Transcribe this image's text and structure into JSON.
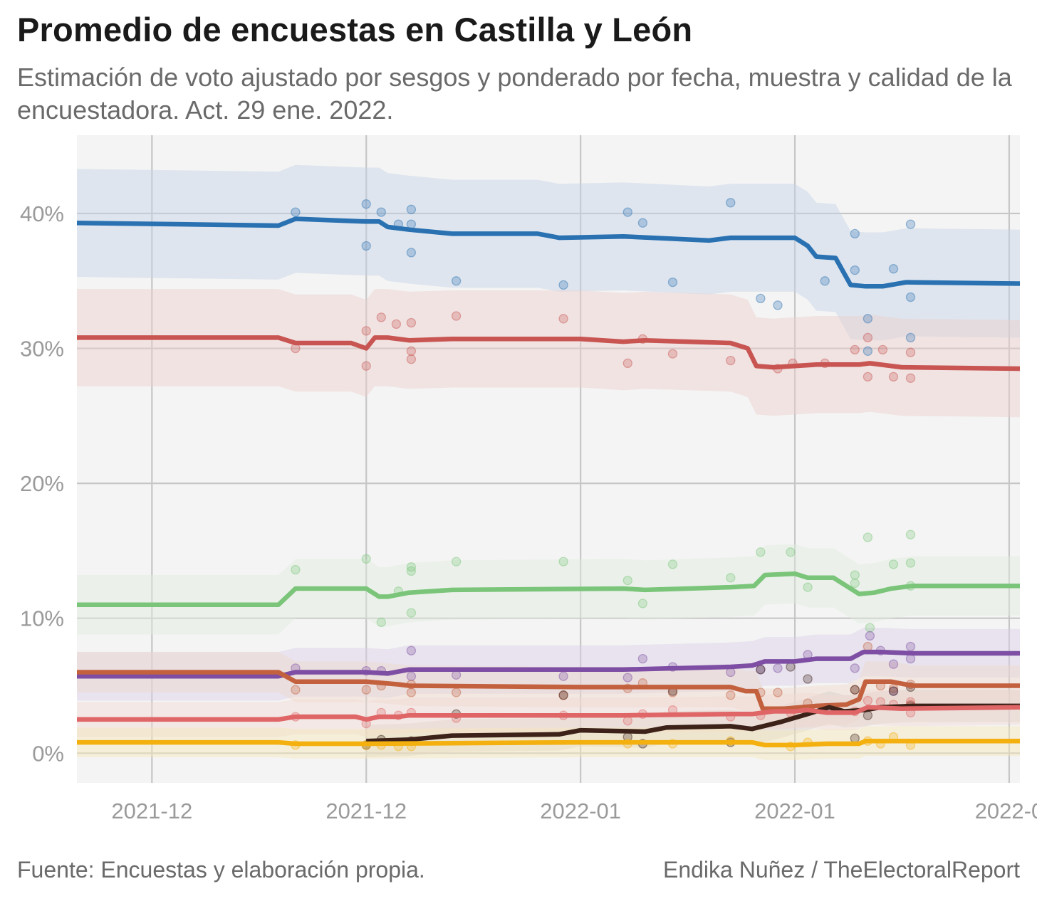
{
  "header": {
    "title": "Promedio de encuestas en Castilla y León",
    "subtitle": "Estimación de voto ajustado por sesgos y ponderado por fecha, muestra y calidad de la encuestadora. Act. 29 ene. 2022."
  },
  "footer": {
    "source": "Fuente: Encuestas y elaboración propia.",
    "credit": "Endika Nuñez / TheElectoralReport"
  },
  "chart_data": {
    "type": "line",
    "title": "Promedio de encuestas en Castilla y León",
    "subtitle": "Estimación de voto ajustado por sesgos y ponderado por fecha, muestra y calidad de la encuestadora. Act. 29 ene. 2022.",
    "xlabel": "",
    "ylabel": "",
    "xlim": [
      -3.5,
      40.5
    ],
    "ylim": [
      -2.2,
      45.8
    ],
    "x_unit": "days since 2021-12-01",
    "x_ticks": [
      {
        "x": 0,
        "label": "2021-12"
      },
      {
        "x": 10,
        "label": "2021-12"
      },
      {
        "x": 20,
        "label": "2022-01"
      },
      {
        "x": 30,
        "label": "2022-01"
      },
      {
        "x": 40,
        "label": "2022-0"
      }
    ],
    "y_ticks": [
      {
        "y": 0,
        "label": "0%"
      },
      {
        "y": 10,
        "label": "10%"
      },
      {
        "y": 20,
        "label": "20%"
      },
      {
        "y": 30,
        "label": "30%"
      },
      {
        "y": 40,
        "label": "40%"
      }
    ],
    "grid": true,
    "background": "#f4f4f4",
    "legend": "none",
    "series": [
      {
        "color": "#2a71b2",
        "band_color": "#c4d2e6",
        "x": [
          -3.5,
          5.9,
          6.7,
          10,
          10.6,
          11,
          12,
          14,
          18,
          19,
          22,
          26,
          27,
          29,
          30,
          30.6,
          31,
          31.9,
          32.6,
          33.3,
          34.1,
          35.2,
          40.5
        ],
        "y": [
          39.3,
          39.1,
          39.6,
          39.4,
          39.4,
          39.0,
          38.8,
          38.5,
          38.5,
          38.2,
          38.3,
          38.0,
          38.2,
          38.2,
          38.2,
          37.6,
          36.8,
          36.7,
          34.7,
          34.6,
          34.6,
          34.9,
          34.8
        ],
        "band": 4.0,
        "points": [
          [
            6.7,
            40.1
          ],
          [
            10,
            40.7
          ],
          [
            10.7,
            40.1
          ],
          [
            12.1,
            40.3
          ],
          [
            12.1,
            39.2
          ],
          [
            11.5,
            39.2
          ],
          [
            10,
            37.6
          ],
          [
            12.1,
            37.1
          ],
          [
            14.2,
            35.0
          ],
          [
            19.2,
            34.7
          ],
          [
            22.2,
            40.1
          ],
          [
            22.9,
            39.3
          ],
          [
            24.3,
            34.9
          ],
          [
            27,
            40.8
          ],
          [
            28.4,
            33.7
          ],
          [
            29.2,
            33.2
          ],
          [
            31.4,
            35.0
          ],
          [
            32.8,
            38.5
          ],
          [
            32.8,
            35.8
          ],
          [
            33.4,
            32.2
          ],
          [
            34.6,
            35.9
          ],
          [
            35.4,
            39.2
          ],
          [
            35.4,
            33.8
          ],
          [
            35.4,
            30.8
          ],
          [
            33.4,
            29.8
          ]
        ]
      },
      {
        "color": "#c85552",
        "band_color": "#eccfcd",
        "x": [
          -3.5,
          5.9,
          6.7,
          9.3,
          10,
          10.4,
          11,
          12,
          14,
          20,
          22,
          23,
          27,
          27.8,
          28.2,
          29,
          31,
          33,
          33.5,
          35,
          40.5
        ],
        "y": [
          30.8,
          30.8,
          30.4,
          30.4,
          30.0,
          30.8,
          30.8,
          30.6,
          30.7,
          30.7,
          30.5,
          30.6,
          30.4,
          30.0,
          28.7,
          28.6,
          28.8,
          28.8,
          28.9,
          28.6,
          28.5
        ],
        "band": 3.6,
        "points": [
          [
            6.7,
            30.0
          ],
          [
            10,
            31.3
          ],
          [
            10,
            28.7
          ],
          [
            10.7,
            32.3
          ],
          [
            11.4,
            31.8
          ],
          [
            12.1,
            31.9
          ],
          [
            12.1,
            29.8
          ],
          [
            12.1,
            29.2
          ],
          [
            14.2,
            32.4
          ],
          [
            19.2,
            32.2
          ],
          [
            22.2,
            28.9
          ],
          [
            22.9,
            30.7
          ],
          [
            24.3,
            29.6
          ],
          [
            27,
            29.1
          ],
          [
            29.2,
            28.5
          ],
          [
            29.9,
            28.9
          ],
          [
            31.4,
            28.9
          ],
          [
            32.8,
            29.9
          ],
          [
            33.4,
            30.8
          ],
          [
            34.1,
            29.9
          ],
          [
            34.6,
            27.9
          ],
          [
            35.4,
            29.7
          ],
          [
            35.4,
            27.8
          ],
          [
            33.4,
            27.9
          ]
        ]
      },
      {
        "color": "#7bc57a",
        "band_color": "#dfeedd",
        "x": [
          -3.5,
          5.9,
          6.7,
          10,
          10.6,
          11,
          12,
          14,
          22,
          23,
          27,
          28.1,
          28.6,
          30,
          30.6,
          31.8,
          33,
          33.7,
          34.5,
          35.5,
          40.5
        ],
        "y": [
          11.0,
          11.0,
          12.2,
          12.2,
          11.6,
          11.6,
          11.9,
          12.1,
          12.2,
          12.1,
          12.3,
          12.4,
          13.2,
          13.3,
          13.0,
          13.0,
          11.8,
          11.9,
          12.2,
          12.4,
          12.4
        ],
        "band": 2.2,
        "points": [
          [
            6.7,
            13.6
          ],
          [
            10,
            14.4
          ],
          [
            10.7,
            9.7
          ],
          [
            11.5,
            12.0
          ],
          [
            12.1,
            13.8
          ],
          [
            12.1,
            13.5
          ],
          [
            12.1,
            10.4
          ],
          [
            14.2,
            14.2
          ],
          [
            19.2,
            14.2
          ],
          [
            22.2,
            12.8
          ],
          [
            22.9,
            11.1
          ],
          [
            24.3,
            14.0
          ],
          [
            27,
            13.0
          ],
          [
            28.4,
            14.9
          ],
          [
            29.8,
            14.9
          ],
          [
            30.6,
            12.3
          ],
          [
            32.8,
            13.2
          ],
          [
            32.8,
            12.6
          ],
          [
            33.5,
            9.3
          ],
          [
            33.4,
            16.0
          ],
          [
            34.6,
            14.0
          ],
          [
            35.4,
            16.2
          ],
          [
            35.4,
            14.1
          ],
          [
            35.4,
            12.4
          ]
        ]
      },
      {
        "color": "#7d4ea3",
        "band_color": "#d9cee6",
        "x": [
          -3.5,
          5.9,
          6.7,
          10,
          11,
          12,
          20,
          22,
          27,
          28,
          28.6,
          30,
          31,
          32.6,
          33.2,
          34,
          35.5,
          40.5
        ],
        "y": [
          5.7,
          5.7,
          6.0,
          6.0,
          5.9,
          6.2,
          6.2,
          6.2,
          6.4,
          6.5,
          6.8,
          6.8,
          7.0,
          7.0,
          7.5,
          7.5,
          7.4,
          7.4
        ],
        "band": 1.8,
        "points": [
          [
            6.7,
            6.3
          ],
          [
            10,
            6.1
          ],
          [
            10.7,
            6.1
          ],
          [
            12.1,
            7.6
          ],
          [
            12.1,
            5.7
          ],
          [
            14.2,
            5.8
          ],
          [
            19.2,
            5.7
          ],
          [
            22.2,
            5.6
          ],
          [
            22.9,
            7.0
          ],
          [
            24.3,
            6.4
          ],
          [
            27,
            6.0
          ],
          [
            28.4,
            6.2
          ],
          [
            29.2,
            6.3
          ],
          [
            30.6,
            7.3
          ],
          [
            32.8,
            6.3
          ],
          [
            33.5,
            8.7
          ],
          [
            34,
            7.6
          ],
          [
            34.6,
            6.6
          ],
          [
            35.4,
            7.9
          ],
          [
            35.4,
            7.0
          ],
          [
            34.6,
            4.6
          ]
        ]
      },
      {
        "color": "#c3613f",
        "band_color": "#efd6c9",
        "x": [
          -3.5,
          5.9,
          6.7,
          10,
          11.5,
          12,
          20,
          22,
          27,
          27.7,
          28.2,
          28.5,
          29.5,
          31,
          32.4,
          33,
          33.3,
          34.5,
          35.5,
          40.5
        ],
        "y": [
          6.0,
          6.0,
          5.3,
          5.3,
          5.1,
          5.0,
          4.9,
          4.9,
          4.9,
          4.6,
          4.6,
          3.3,
          3.3,
          3.5,
          3.6,
          4.0,
          5.3,
          5.3,
          5.0,
          5.0
        ],
        "band": 1.5,
        "points": [
          [
            6.7,
            4.7
          ],
          [
            10,
            4.7
          ],
          [
            10.7,
            5.0
          ],
          [
            12.1,
            5.1
          ],
          [
            12.1,
            4.5
          ],
          [
            14.2,
            4.5
          ],
          [
            19.2,
            4.3
          ],
          [
            22.2,
            4.8
          ],
          [
            22.9,
            5.2
          ],
          [
            24.3,
            4.5
          ],
          [
            27,
            4.3
          ],
          [
            28.4,
            4.5
          ],
          [
            29.2,
            4.5
          ],
          [
            30.6,
            3.7
          ],
          [
            32.8,
            4.7
          ],
          [
            33.4,
            7.9
          ],
          [
            34,
            5.0
          ],
          [
            34.6,
            4.8
          ],
          [
            35.4,
            5.1
          ],
          [
            35.4,
            3.6
          ]
        ]
      },
      {
        "color": "#3c2218",
        "band_color": "#d6cfca",
        "x": [
          10,
          12,
          14,
          19,
          20,
          23,
          24,
          27,
          28,
          29.3,
          30.6,
          31.6,
          32.3,
          33.3,
          34,
          35.5,
          40.5
        ],
        "y": [
          0.9,
          1.0,
          1.3,
          1.4,
          1.7,
          1.6,
          1.9,
          2.0,
          1.8,
          2.3,
          2.9,
          3.4,
          3.1,
          3.2,
          3.4,
          3.5,
          3.5
        ],
        "band": 1.2,
        "points": [
          [
            10,
            0.6
          ],
          [
            10.7,
            1.0
          ],
          [
            12.1,
            0.9
          ],
          [
            14.2,
            2.9
          ],
          [
            19.2,
            4.3
          ],
          [
            22.2,
            1.2
          ],
          [
            22.9,
            0.7
          ],
          [
            24.3,
            4.6
          ],
          [
            27,
            0.8
          ],
          [
            28.4,
            6.2
          ],
          [
            29.8,
            6.4
          ],
          [
            30.6,
            5.5
          ],
          [
            32.8,
            4.7
          ],
          [
            32.8,
            1.1
          ],
          [
            33.4,
            2.8
          ],
          [
            34.6,
            4.6
          ],
          [
            35.4,
            4.9
          ],
          [
            35.4,
            3.5
          ]
        ]
      },
      {
        "color": "#df6567",
        "band_color": "#f1d9d2",
        "x": [
          -3.5,
          5.9,
          6.7,
          9.5,
          10,
          10.6,
          11.5,
          12,
          20,
          22,
          27,
          28,
          29,
          30,
          30.6,
          31.5,
          32.8,
          33.4,
          35,
          40.5
        ],
        "y": [
          2.5,
          2.5,
          2.7,
          2.7,
          2.5,
          2.7,
          2.7,
          2.8,
          2.8,
          2.8,
          2.9,
          2.9,
          3.1,
          3.1,
          3.2,
          3.0,
          3.0,
          3.4,
          3.3,
          3.4
        ],
        "band": 1.3,
        "points": [
          [
            6.7,
            2.7
          ],
          [
            10,
            2.2
          ],
          [
            10.7,
            3.0
          ],
          [
            11.5,
            2.8
          ],
          [
            12.1,
            3.0
          ],
          [
            14.2,
            2.6
          ],
          [
            19.2,
            2.8
          ],
          [
            22.2,
            2.4
          ],
          [
            22.9,
            2.9
          ],
          [
            24.3,
            3.2
          ],
          [
            27,
            2.7
          ],
          [
            28.4,
            2.8
          ],
          [
            29.8,
            3.0
          ],
          [
            30.6,
            3.1
          ],
          [
            32.8,
            3.1
          ],
          [
            33.4,
            3.9
          ],
          [
            34,
            3.8
          ],
          [
            34.6,
            3.6
          ],
          [
            35.4,
            3.0
          ],
          [
            35.4,
            3.8
          ]
        ]
      },
      {
        "color": "#f3b00f",
        "band_color": "#f6e6b9",
        "x": [
          -3.5,
          5.9,
          6.7,
          10,
          20,
          28,
          28.6,
          30,
          31.5,
          33,
          33.3,
          35,
          40.5
        ],
        "y": [
          0.8,
          0.8,
          0.7,
          0.7,
          0.8,
          0.8,
          0.6,
          0.6,
          0.7,
          0.7,
          0.9,
          0.9,
          0.9
        ],
        "band": 1.1,
        "points": [
          [
            6.7,
            0.6
          ],
          [
            10,
            0.6
          ],
          [
            10.7,
            0.6
          ],
          [
            11.5,
            0.5
          ],
          [
            12.1,
            0.5
          ],
          [
            22.2,
            0.7
          ],
          [
            24.3,
            0.7
          ],
          [
            27,
            0.9
          ],
          [
            29.8,
            0.5
          ],
          [
            30.6,
            0.8
          ],
          [
            33.4,
            0.9
          ],
          [
            34,
            0.7
          ],
          [
            34.6,
            1.2
          ],
          [
            35.4,
            0.6
          ]
        ]
      }
    ]
  }
}
